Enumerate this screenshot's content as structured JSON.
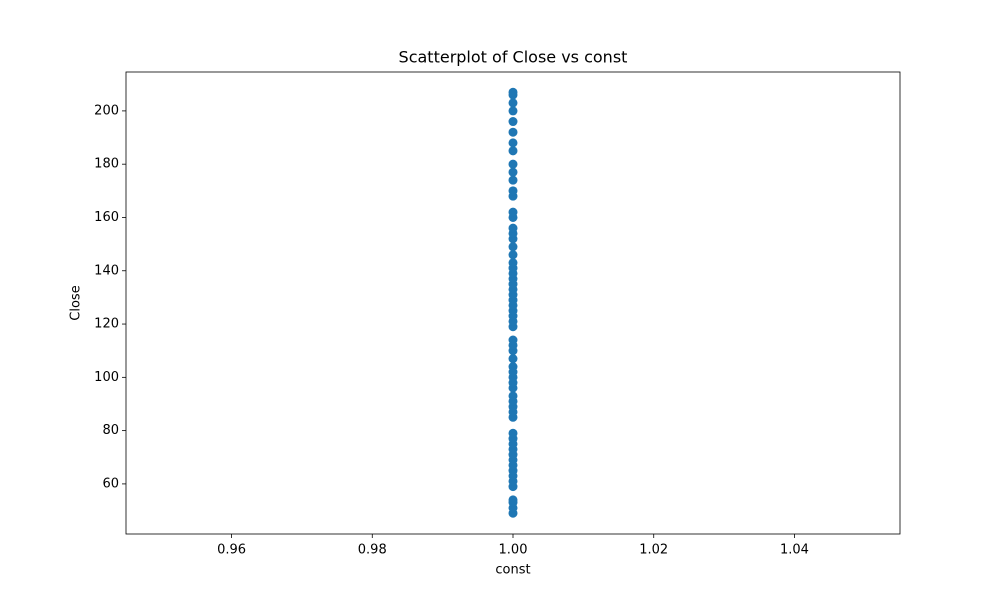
{
  "chart_data": {
    "type": "scatter",
    "title": "Scatterplot of Close vs const",
    "x_label": "const",
    "y_label": "Close",
    "color": "#1f77b4",
    "x": [
      1,
      1,
      1,
      1,
      1,
      1,
      1,
      1,
      1,
      1,
      1,
      1,
      1,
      1,
      1,
      1,
      1,
      1,
      1,
      1,
      1,
      1,
      1,
      1,
      1,
      1,
      1,
      1,
      1,
      1,
      1,
      1,
      1,
      1,
      1,
      1,
      1,
      1,
      1,
      1,
      1,
      1,
      1,
      1,
      1,
      1,
      1,
      1,
      1,
      1,
      1,
      1,
      1,
      1,
      1,
      1,
      1,
      1,
      1,
      1,
      1,
      1
    ],
    "y": [
      49,
      51,
      53,
      54,
      59,
      61,
      63,
      65,
      67,
      69,
      71,
      73,
      75,
      77,
      79,
      85,
      87,
      89,
      91,
      93,
      96,
      98,
      100,
      102,
      104,
      107,
      110,
      112,
      114,
      119,
      121,
      123,
      125,
      127,
      129,
      131,
      133,
      135,
      137,
      139,
      141,
      143,
      146,
      149,
      152,
      154,
      156,
      160,
      162,
      168,
      170,
      174,
      177,
      180,
      185,
      188,
      192,
      196,
      200,
      203,
      206,
      207
    ],
    "xlim": [
      0.945,
      1.055
    ],
    "xticks": [
      0.96,
      0.98,
      {
        "value": 1,
        "label": "1.00"
      },
      1.02,
      1.04
    ],
    "ylim": [
      41.2,
      214.6
    ],
    "yticks": [
      60,
      80,
      100,
      120,
      140,
      160,
      180,
      200
    ]
  }
}
